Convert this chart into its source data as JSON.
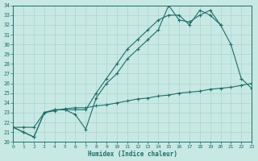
{
  "xlabel": "Humidex (Indice chaleur)",
  "xlim": [
    0,
    23
  ],
  "ylim": [
    20,
    34
  ],
  "background_color": "#c8e8e4",
  "grid_color": "#aad4cc",
  "line_color": "#1e6e6a",
  "yticks": [
    20,
    21,
    22,
    23,
    24,
    25,
    26,
    27,
    28,
    29,
    30,
    31,
    32,
    33,
    34
  ],
  "xticks": [
    0,
    1,
    2,
    3,
    4,
    5,
    6,
    7,
    8,
    9,
    10,
    11,
    12,
    13,
    14,
    15,
    16,
    17,
    18,
    19,
    20,
    21,
    22,
    23
  ],
  "series": [
    {
      "x": [
        0,
        1,
        2,
        3,
        4,
        5,
        6,
        7,
        8,
        9,
        10,
        11,
        12,
        13,
        14,
        15,
        16,
        17,
        18,
        19,
        20,
        21,
        22,
        23
      ],
      "y": [
        21.5,
        21.0,
        20.5,
        23.0,
        23.3,
        23.3,
        22.8,
        21.3,
        24.5,
        26.0,
        27.0,
        28.5,
        29.5,
        30.5,
        31.5,
        34.0,
        32.5,
        32.3,
        33.0,
        33.5,
        32.0,
        30.0,
        26.5,
        25.5
      ]
    },
    {
      "x": [
        0,
        1,
        2,
        3,
        4,
        5,
        6,
        7,
        8,
        9,
        10,
        11,
        12,
        13,
        14,
        15,
        16,
        17,
        18,
        19,
        20
      ],
      "y": [
        21.5,
        21.0,
        20.5,
        23.0,
        23.3,
        23.3,
        23.3,
        23.3,
        25.0,
        26.5,
        28.0,
        29.5,
        30.5,
        31.5,
        32.5,
        33.0,
        33.0,
        32.0,
        33.5,
        33.0,
        32.0
      ]
    },
    {
      "x": [
        0,
        1,
        2,
        3,
        4,
        5,
        6,
        7,
        8,
        9,
        10,
        11,
        12,
        13,
        14,
        15,
        16,
        17,
        18,
        19,
        20,
        21,
        22,
        23
      ],
      "y": [
        21.5,
        21.5,
        21.5,
        23.0,
        23.2,
        23.4,
        23.5,
        23.5,
        23.7,
        23.8,
        24.0,
        24.2,
        24.4,
        24.5,
        24.7,
        24.8,
        25.0,
        25.1,
        25.2,
        25.4,
        25.5,
        25.6,
        25.8,
        26.0
      ]
    }
  ]
}
